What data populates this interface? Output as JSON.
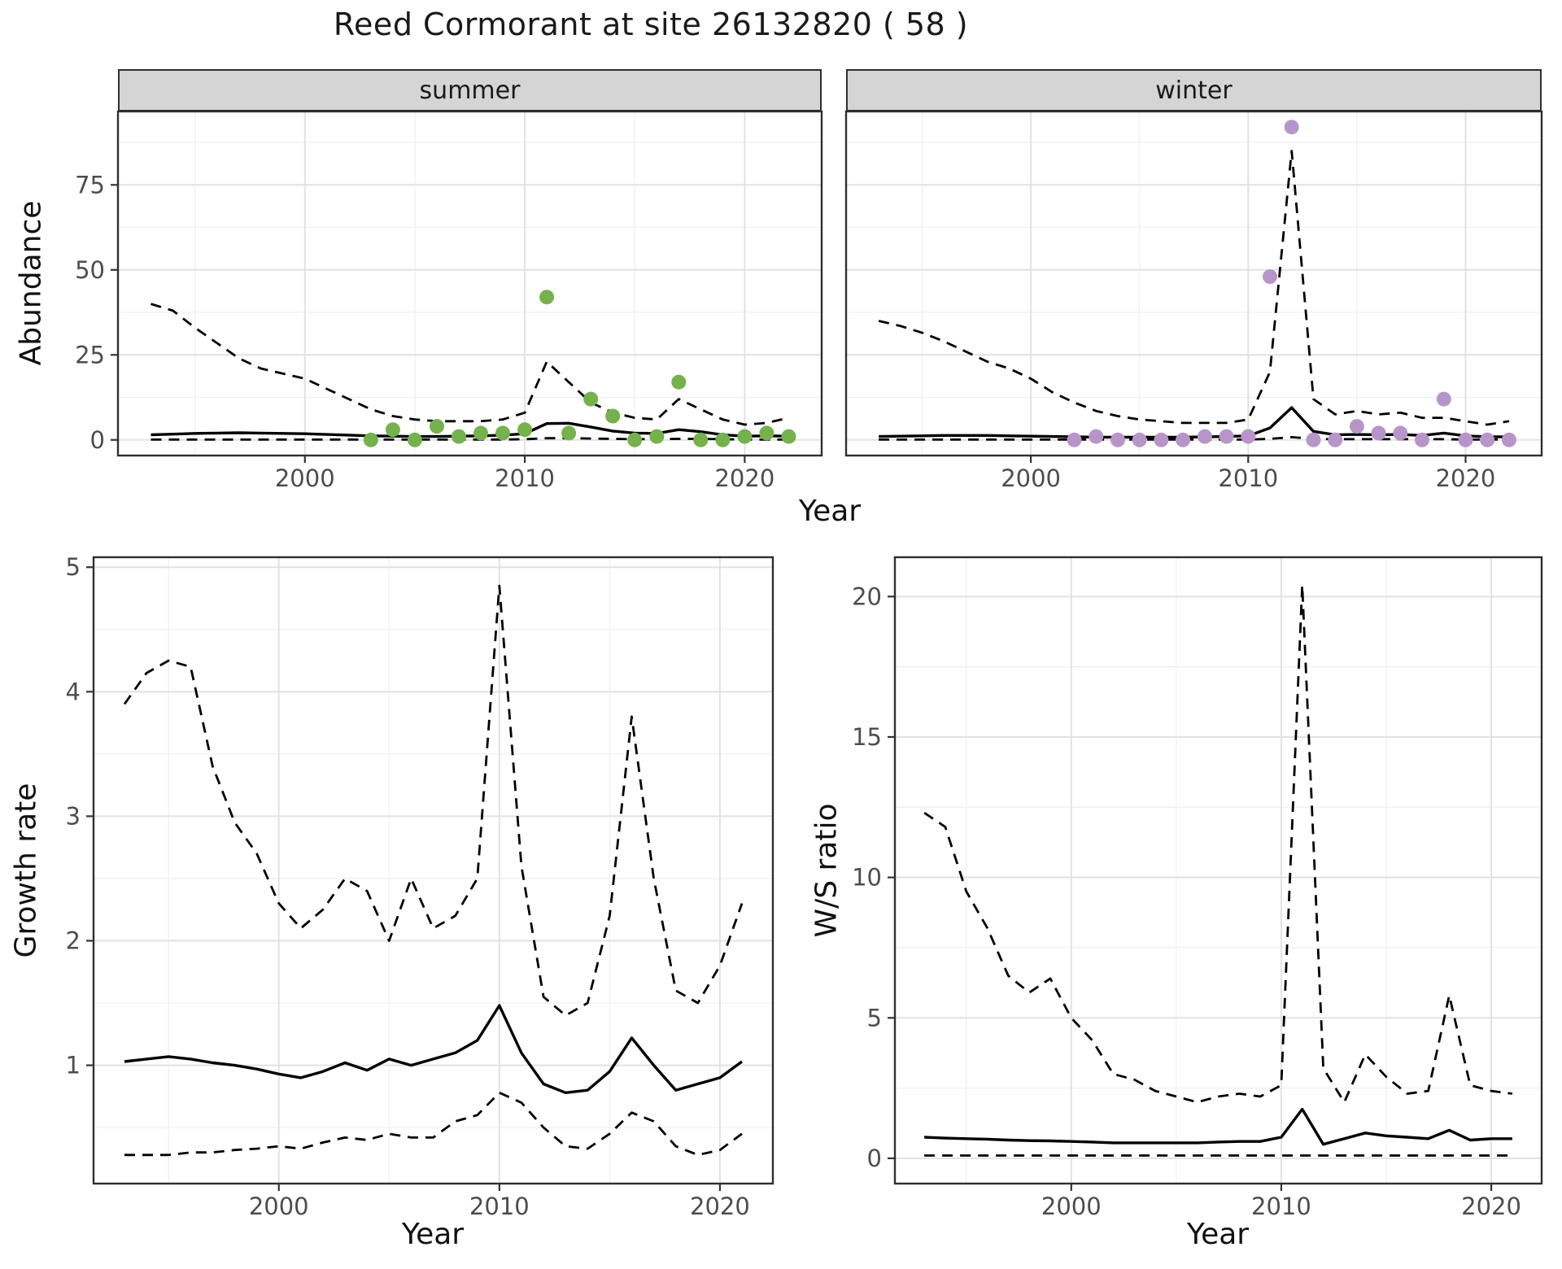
{
  "title": "Reed Cormorant at site 26132820 ( 58 )",
  "facets": {
    "summer": "summer",
    "winter": "winter"
  },
  "axis_labels": {
    "abundance": "Abundance",
    "year_top": "Year",
    "growth": "Growth rate",
    "year_growth": "Year",
    "ws": "W/S ratio",
    "year_ws": "Year"
  },
  "colors": {
    "summer_points": "#75b14c",
    "winter_points": "#b795c9",
    "line": "#000000",
    "grid_major": "#e2e2e2",
    "grid_minor": "#f0f0f0",
    "panel_border": "#2f2f2f",
    "tick_mark": "#333333",
    "tick_label": "#4d4d4d",
    "strip_bg": "#d5d5d5",
    "title_color": "#1a1a1a"
  },
  "chart_data": [
    {
      "id": "summer",
      "type": "line",
      "facet_label": "summer",
      "x_years": [
        1993,
        1994,
        1995,
        1996,
        1997,
        1998,
        1999,
        2000,
        2001,
        2002,
        2003,
        2004,
        2005,
        2006,
        2007,
        2008,
        2009,
        2010,
        2011,
        2012,
        2013,
        2014,
        2015,
        2016,
        2017,
        2018,
        2019,
        2020,
        2021,
        2022
      ],
      "xlim": [
        1991.5,
        2023.5
      ],
      "ylim": [
        -4.6,
        96.6
      ],
      "xticks": [
        2000,
        2010,
        2020
      ],
      "xticks_minor": [
        1995,
        2005,
        2015
      ],
      "yticks": [
        0,
        25,
        50,
        75
      ],
      "yticks_minor": [
        12.5,
        37.5,
        62.5,
        87.5
      ],
      "show_y_tick_labels": true,
      "series": [
        {
          "name": "upper_95ci",
          "style": "dashed",
          "y": [
            40,
            38,
            33,
            28.5,
            24,
            21,
            19.5,
            18,
            15,
            12,
            9,
            7,
            6,
            5.5,
            5.5,
            5.5,
            6,
            8,
            23,
            17,
            11,
            8,
            6.5,
            6,
            12,
            9,
            6,
            4.5,
            5,
            6.5
          ]
        },
        {
          "name": "fitted",
          "style": "solid",
          "y": [
            1.5,
            1.7,
            1.9,
            2.0,
            2.1,
            2.0,
            1.9,
            1.8,
            1.6,
            1.4,
            1.2,
            1.1,
            1.0,
            1.0,
            1.1,
            1.2,
            1.4,
            1.8,
            4.8,
            4.9,
            3.8,
            2.6,
            2.0,
            1.9,
            3.0,
            2.4,
            1.5,
            1.1,
            1.2,
            1.1
          ]
        },
        {
          "name": "lower_95ci",
          "style": "dashed",
          "y": [
            0.1,
            0.1,
            0.1,
            0.1,
            0.1,
            0.1,
            0.1,
            0.1,
            0.1,
            0.1,
            0.1,
            0.1,
            0.1,
            0.1,
            0.1,
            0.1,
            0.1,
            0.2,
            0.5,
            0.5,
            0.4,
            0.3,
            0.2,
            0.2,
            0.3,
            0.3,
            0.2,
            0.1,
            0.1,
            0.1
          ]
        }
      ],
      "points": {
        "name": "observed_counts",
        "color_key": "summer_points",
        "x": [
          2003,
          2004,
          2005,
          2006,
          2007,
          2008,
          2009,
          2010,
          2011,
          2012,
          2013,
          2014,
          2015,
          2016,
          2017,
          2018,
          2019,
          2020,
          2021,
          2022
        ],
        "y": [
          0,
          3,
          0,
          4,
          1,
          2,
          2,
          3,
          42,
          2,
          12,
          7,
          0,
          1,
          17,
          0,
          0,
          1,
          2,
          1
        ]
      }
    },
    {
      "id": "winter",
      "type": "line",
      "facet_label": "winter",
      "x_years": [
        1993,
        1994,
        1995,
        1996,
        1997,
        1998,
        1999,
        2000,
        2001,
        2002,
        2003,
        2004,
        2005,
        2006,
        2007,
        2008,
        2009,
        2010,
        2011,
        2012,
        2013,
        2014,
        2015,
        2016,
        2017,
        2018,
        2019,
        2020,
        2021,
        2022
      ],
      "xlim": [
        1991.5,
        2023.5
      ],
      "ylim": [
        -4.6,
        96.6
      ],
      "xticks": [
        2000,
        2010,
        2020
      ],
      "xticks_minor": [
        1995,
        2005,
        2015
      ],
      "yticks": [
        0,
        25,
        50,
        75
      ],
      "yticks_minor": [
        12.5,
        37.5,
        62.5,
        87.5
      ],
      "show_y_tick_labels": false,
      "series": [
        {
          "name": "upper_95ci",
          "style": "dashed",
          "y": [
            35,
            33.5,
            31.5,
            29,
            26,
            23,
            21,
            18,
            14,
            11,
            8.5,
            7,
            6,
            5.5,
            5,
            5,
            5,
            6,
            20,
            85,
            12,
            7.5,
            8.5,
            7.5,
            8,
            6.5,
            6.5,
            5.5,
            4.5,
            5.5
          ]
        },
        {
          "name": "fitted",
          "style": "solid",
          "y": [
            1.0,
            1.1,
            1.2,
            1.3,
            1.3,
            1.3,
            1.2,
            1.1,
            1.0,
            0.9,
            0.8,
            0.8,
            0.8,
            0.8,
            0.8,
            0.9,
            1.0,
            1.2,
            3.5,
            9.5,
            2.5,
            1.5,
            1.6,
            1.5,
            1.6,
            1.3,
            2.0,
            1.2,
            0.9,
            0.9
          ]
        },
        {
          "name": "lower_95ci",
          "style": "dashed",
          "y": [
            0.1,
            0.1,
            0.1,
            0.1,
            0.1,
            0.1,
            0.1,
            0.1,
            0.1,
            0.1,
            0.1,
            0.1,
            0.1,
            0.1,
            0.1,
            0.1,
            0.1,
            0.1,
            0.3,
            0.8,
            0.3,
            0.2,
            0.2,
            0.2,
            0.2,
            0.2,
            0.2,
            0.1,
            0.1,
            0.1
          ]
        }
      ],
      "points": {
        "name": "observed_counts",
        "color_key": "winter_points",
        "x": [
          2002,
          2003,
          2004,
          2005,
          2006,
          2007,
          2008,
          2009,
          2010,
          2011,
          2012,
          2013,
          2014,
          2015,
          2016,
          2017,
          2018,
          2019,
          2020,
          2021,
          2022
        ],
        "y": [
          0,
          1,
          0,
          0,
          0,
          0,
          1,
          1,
          1,
          48,
          92,
          0,
          0,
          4,
          2,
          2,
          0,
          12,
          0,
          0,
          0
        ]
      }
    },
    {
      "id": "growth",
      "type": "line",
      "x_years": [
        1993,
        1994,
        1995,
        1996,
        1997,
        1998,
        1999,
        2000,
        2001,
        2002,
        2003,
        2004,
        2005,
        2006,
        2007,
        2008,
        2009,
        2010,
        2011,
        2012,
        2013,
        2014,
        2015,
        2016,
        2017,
        2018,
        2019,
        2020,
        2021
      ],
      "xlim": [
        1991.6,
        2022.4
      ],
      "ylim": [
        0.05,
        5.08
      ],
      "xticks": [
        2000,
        2010,
        2020
      ],
      "xticks_minor": [
        1995,
        2005,
        2015
      ],
      "yticks": [
        1,
        2,
        3,
        4,
        5
      ],
      "yticks_minor": [
        0.5,
        1.5,
        2.5,
        3.5,
        4.5
      ],
      "show_y_tick_labels": true,
      "series": [
        {
          "name": "upper_95ci",
          "style": "dashed",
          "y": [
            3.9,
            4.15,
            4.25,
            4.2,
            3.4,
            2.95,
            2.7,
            2.3,
            2.1,
            2.25,
            2.5,
            2.4,
            2.0,
            2.5,
            2.1,
            2.2,
            2.5,
            4.85,
            2.6,
            1.55,
            1.4,
            1.5,
            2.2,
            3.8,
            2.5,
            1.6,
            1.5,
            1.8,
            2.3
          ]
        },
        {
          "name": "fitted",
          "style": "solid",
          "y": [
            1.03,
            1.05,
            1.07,
            1.05,
            1.02,
            1.0,
            0.97,
            0.93,
            0.9,
            0.95,
            1.02,
            0.96,
            1.05,
            1.0,
            1.05,
            1.1,
            1.2,
            1.48,
            1.1,
            0.85,
            0.78,
            0.8,
            0.95,
            1.22,
            1.0,
            0.8,
            0.85,
            0.9,
            1.03
          ]
        },
        {
          "name": "lower_95ci",
          "style": "dashed",
          "y": [
            0.28,
            0.28,
            0.28,
            0.3,
            0.3,
            0.32,
            0.33,
            0.35,
            0.33,
            0.38,
            0.42,
            0.4,
            0.45,
            0.42,
            0.42,
            0.55,
            0.6,
            0.78,
            0.7,
            0.5,
            0.35,
            0.33,
            0.45,
            0.62,
            0.55,
            0.35,
            0.28,
            0.32,
            0.45
          ]
        }
      ]
    },
    {
      "id": "ws",
      "type": "line",
      "x_years": [
        1993,
        1994,
        1995,
        1996,
        1997,
        1998,
        1999,
        2000,
        2001,
        2002,
        2003,
        2004,
        2005,
        2006,
        2007,
        2008,
        2009,
        2010,
        2011,
        2012,
        2013,
        2014,
        2015,
        2016,
        2017,
        2018,
        2019,
        2020,
        2021
      ],
      "xlim": [
        1991.6,
        2022.4
      ],
      "ylim": [
        -0.9,
        21.4
      ],
      "xticks": [
        2000,
        2010,
        2020
      ],
      "xticks_minor": [
        1995,
        2005,
        2015
      ],
      "yticks": [
        0,
        5,
        10,
        15,
        20
      ],
      "yticks_minor": [
        2.5,
        7.5,
        12.5,
        17.5
      ],
      "show_y_tick_labels": true,
      "series": [
        {
          "name": "upper_95ci",
          "style": "dashed",
          "y": [
            12.3,
            11.8,
            9.5,
            8.2,
            6.5,
            5.9,
            6.4,
            5.0,
            4.2,
            3.0,
            2.8,
            2.4,
            2.2,
            2.0,
            2.2,
            2.3,
            2.2,
            2.6,
            20.4,
            3.2,
            2.0,
            3.7,
            2.9,
            2.3,
            2.4,
            5.8,
            2.6,
            2.4,
            2.3
          ]
        },
        {
          "name": "fitted",
          "style": "solid",
          "y": [
            0.75,
            0.72,
            0.7,
            0.68,
            0.65,
            0.63,
            0.62,
            0.6,
            0.58,
            0.55,
            0.55,
            0.55,
            0.55,
            0.55,
            0.58,
            0.6,
            0.6,
            0.75,
            1.75,
            0.5,
            0.7,
            0.9,
            0.8,
            0.75,
            0.7,
            1.0,
            0.65,
            0.7,
            0.7
          ]
        },
        {
          "name": "lower_95ci",
          "style": "dashed",
          "y": [
            0.1,
            0.1,
            0.1,
            0.1,
            0.1,
            0.1,
            0.1,
            0.1,
            0.1,
            0.1,
            0.1,
            0.1,
            0.1,
            0.1,
            0.1,
            0.1,
            0.1,
            0.1,
            0.1,
            0.1,
            0.1,
            0.1,
            0.1,
            0.1,
            0.1,
            0.1,
            0.1,
            0.1,
            0.1
          ]
        }
      ]
    }
  ]
}
